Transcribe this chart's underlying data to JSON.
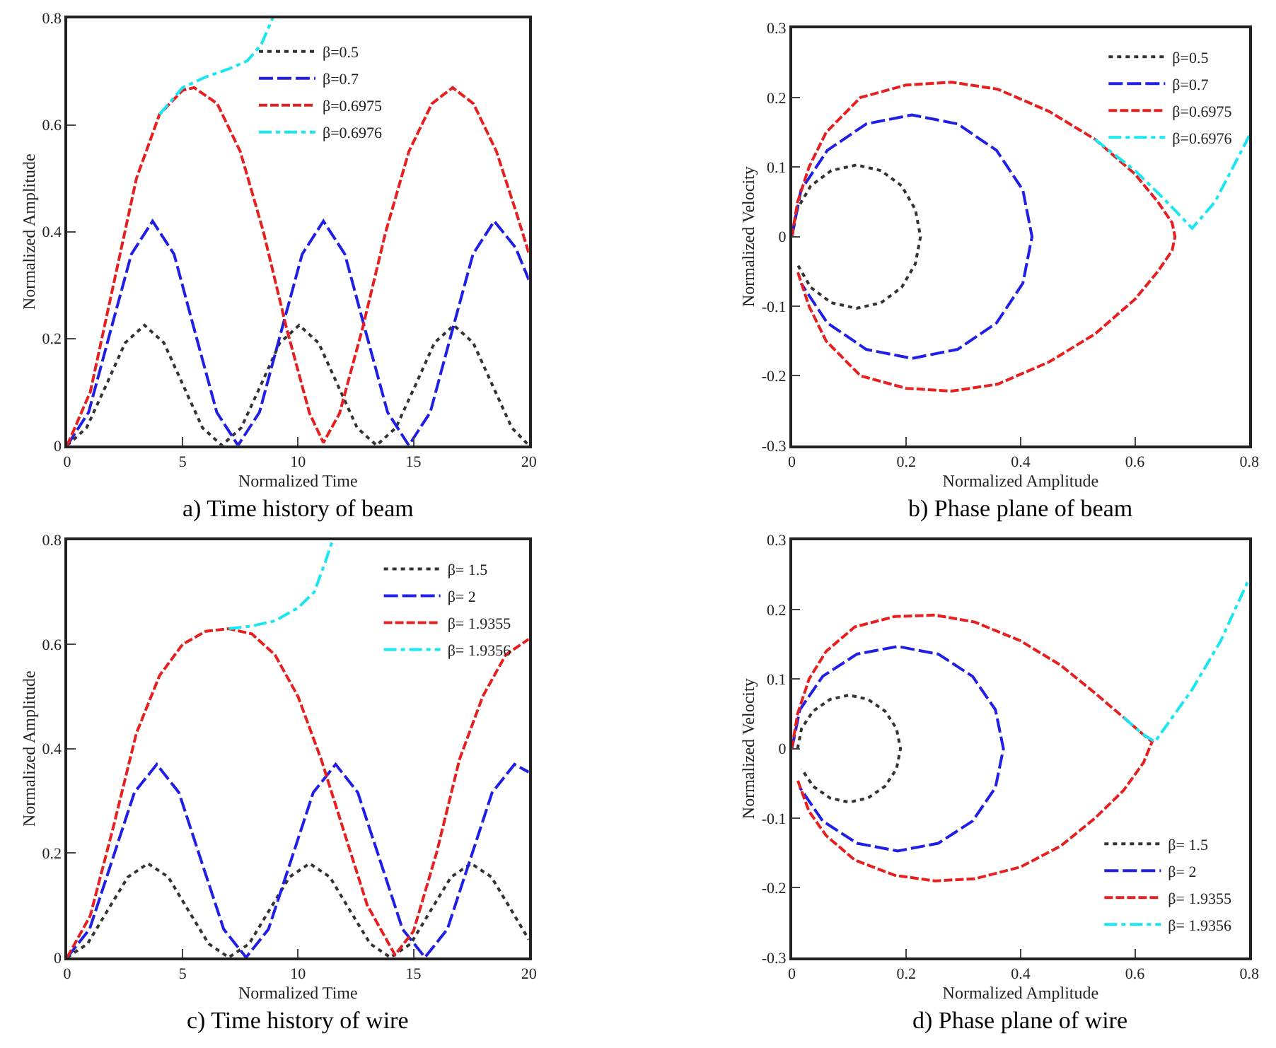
{
  "chart_data": [
    {
      "type": "line",
      "title": "a) Time history of beam",
      "xlabel": "Normalized Time",
      "ylabel": "Normalized Amplitude",
      "xlim": [
        0,
        20
      ],
      "ylim": [
        0,
        0.8
      ],
      "xticks": [
        0,
        5,
        10,
        15,
        20
      ],
      "yticks": [
        0,
        0.2,
        0.4,
        0.6,
        0.8
      ],
      "legend": "top",
      "series": [
        {
          "name": "β=0.5",
          "color": "#333333",
          "line_style": "dotted",
          "x": [
            0,
            0.84,
            1.68,
            2.51,
            3.35,
            4.19,
            5.03,
            5.86,
            6.7,
            7.54,
            8.38,
            9.21,
            10.05,
            10.89,
            11.73,
            12.56,
            13.4,
            14.24,
            15.08,
            15.91,
            16.75,
            17.59,
            18.43,
            19.26,
            20
          ],
          "values": [
            0,
            0.033,
            0.112,
            0.192,
            0.225,
            0.192,
            0.112,
            0.033,
            0,
            0.033,
            0.112,
            0.192,
            0.225,
            0.192,
            0.112,
            0.033,
            0,
            0.033,
            0.112,
            0.192,
            0.225,
            0.192,
            0.112,
            0.033,
            0
          ]
        },
        {
          "name": "β=0.7",
          "color": "#1f1fe6",
          "line_style": "longdash",
          "x": [
            0,
            0.93,
            1.85,
            2.78,
            3.7,
            4.63,
            5.55,
            6.48,
            7.4,
            8.33,
            9.25,
            10.18,
            11.1,
            12.03,
            12.95,
            13.88,
            14.8,
            15.73,
            16.65,
            17.58,
            18.5,
            19.43,
            20
          ],
          "values": [
            0,
            0.062,
            0.21,
            0.358,
            0.42,
            0.358,
            0.21,
            0.062,
            0,
            0.062,
            0.21,
            0.358,
            0.42,
            0.358,
            0.21,
            0.062,
            0,
            0.062,
            0.21,
            0.358,
            0.42,
            0.37,
            0.31
          ]
        },
        {
          "name": "β=0.6975",
          "color": "#e62020",
          "line_style": "dashed",
          "x": [
            0,
            1,
            2,
            3,
            4,
            5,
            5.5,
            6.5,
            7.5,
            8.5,
            9.5,
            10.5,
            11.1,
            11.8,
            12.8,
            13.8,
            14.8,
            15.8,
            16.7,
            17.6,
            18.6,
            19.5,
            20
          ],
          "values": [
            0,
            0.1,
            0.3,
            0.5,
            0.62,
            0.665,
            0.67,
            0.64,
            0.55,
            0.4,
            0.22,
            0.06,
            0.005,
            0.06,
            0.22,
            0.4,
            0.55,
            0.64,
            0.67,
            0.64,
            0.55,
            0.43,
            0.36
          ]
        },
        {
          "name": "β=0.6976",
          "color": "#19e6f0",
          "line_style": "dashdot",
          "x": [
            4,
            5,
            6,
            7,
            7.8,
            8.4,
            8.9
          ],
          "values": [
            0.62,
            0.67,
            0.69,
            0.705,
            0.72,
            0.75,
            0.8
          ]
        }
      ]
    },
    {
      "type": "line",
      "title": "b) Phase plane of beam",
      "xlabel": "Normalized Amplitude",
      "ylabel": "Normalized Velocity",
      "xlim": [
        0,
        0.8
      ],
      "ylim": [
        -0.3,
        0.3
      ],
      "xticks": [
        0,
        0.2,
        0.4,
        0.6,
        0.8
      ],
      "yticks": [
        -0.3,
        -0.2,
        -0.1,
        0,
        0.1,
        0.2,
        0.3
      ],
      "legend": "top right",
      "series": [
        {
          "name": "β=0.5",
          "color": "#333333",
          "line_style": "dotted",
          "x": [
            0,
            0.009,
            0.033,
            0.069,
            0.113,
            0.156,
            0.192,
            0.216,
            0.225,
            0.216,
            0.192,
            0.156,
            0.113,
            0.069,
            0.033,
            0.009
          ],
          "values": [
            0,
            0.039,
            0.073,
            0.095,
            0.103,
            0.095,
            0.073,
            0.039,
            0,
            -0.039,
            -0.073,
            -0.095,
            -0.103,
            -0.095,
            -0.073,
            -0.039
          ]
        },
        {
          "name": "β=0.7",
          "color": "#1f1fe6",
          "line_style": "longdash",
          "x": [
            0,
            0.016,
            0.062,
            0.13,
            0.21,
            0.29,
            0.358,
            0.404,
            0.42,
            0.404,
            0.358,
            0.29,
            0.21,
            0.13,
            0.062,
            0.016
          ],
          "values": [
            0,
            0.067,
            0.124,
            0.162,
            0.175,
            0.162,
            0.124,
            0.067,
            0,
            -0.067,
            -0.124,
            -0.162,
            -0.175,
            -0.162,
            -0.124,
            -0.067
          ]
        },
        {
          "name": "β=0.6975",
          "color": "#e62020",
          "line_style": "dashed",
          "x": [
            0,
            0.01,
            0.03,
            0.06,
            0.12,
            0.2,
            0.28,
            0.36,
            0.45,
            0.53,
            0.6,
            0.64,
            0.665,
            0.67,
            0.665,
            0.64,
            0.6,
            0.53,
            0.45,
            0.36,
            0.28,
            0.2,
            0.12,
            0.06,
            0.03,
            0.01
          ],
          "values": [
            0,
            0.05,
            0.1,
            0.15,
            0.2,
            0.218,
            0.222,
            0.212,
            0.18,
            0.14,
            0.09,
            0.05,
            0.02,
            0,
            -0.02,
            -0.05,
            -0.09,
            -0.14,
            -0.18,
            -0.212,
            -0.222,
            -0.218,
            -0.2,
            -0.15,
            -0.1,
            -0.05
          ]
        },
        {
          "name": "β=0.6976",
          "color": "#19e6f0",
          "line_style": "dashdot",
          "x": [
            0.53,
            0.6,
            0.65,
            0.7,
            0.74,
            0.8
          ],
          "values": [
            0.14,
            0.095,
            0.055,
            0.012,
            0.05,
            0.145
          ]
        }
      ]
    },
    {
      "type": "line",
      "title": "c) Time history of wire",
      "xlabel": "Normalized Time",
      "ylabel": "Normalized Amplitude",
      "xlim": [
        0,
        20
      ],
      "ylim": [
        0,
        0.8
      ],
      "xticks": [
        0,
        5,
        10,
        15,
        20
      ],
      "yticks": [
        0,
        0.2,
        0.4,
        0.6,
        0.8
      ],
      "legend": "top right",
      "series": [
        {
          "name": "β= 1.5",
          "color": "#333333",
          "line_style": "dotted",
          "x": [
            0,
            0.88,
            1.75,
            2.63,
            3.5,
            4.38,
            5.25,
            6.13,
            7,
            7.88,
            8.75,
            9.63,
            10.5,
            11.38,
            12.25,
            13.13,
            14,
            14.88,
            15.75,
            16.63,
            17.5,
            18.38,
            19.25,
            20
          ],
          "values": [
            0,
            0.026,
            0.09,
            0.154,
            0.18,
            0.154,
            0.09,
            0.026,
            0,
            0.026,
            0.09,
            0.154,
            0.18,
            0.154,
            0.09,
            0.026,
            0,
            0.026,
            0.09,
            0.154,
            0.18,
            0.154,
            0.09,
            0.034
          ]
        },
        {
          "name": "β= 2",
          "color": "#1f1fe6",
          "line_style": "longdash",
          "x": [
            0,
            0.97,
            1.94,
            2.91,
            3.88,
            4.84,
            5.81,
            6.78,
            7.75,
            8.72,
            9.69,
            10.66,
            11.63,
            12.59,
            13.56,
            14.53,
            15.5,
            16.47,
            17.44,
            18.41,
            19.38,
            20
          ],
          "values": [
            0,
            0.054,
            0.185,
            0.316,
            0.37,
            0.316,
            0.185,
            0.054,
            0,
            0.054,
            0.185,
            0.316,
            0.37,
            0.316,
            0.185,
            0.054,
            0,
            0.054,
            0.185,
            0.316,
            0.37,
            0.355
          ]
        },
        {
          "name": "β= 1.9355",
          "color": "#e62020",
          "line_style": "dashed",
          "x": [
            0,
            1,
            2,
            3,
            4,
            5,
            6,
            7,
            8,
            9,
            10,
            11,
            12,
            13,
            14.2,
            15,
            16,
            17,
            18,
            19,
            20
          ],
          "values": [
            0,
            0.08,
            0.25,
            0.43,
            0.54,
            0.6,
            0.625,
            0.63,
            0.62,
            0.58,
            0.5,
            0.38,
            0.24,
            0.1,
            0.005,
            0.05,
            0.2,
            0.38,
            0.5,
            0.58,
            0.61
          ]
        },
        {
          "name": "β= 1.9356",
          "color": "#19e6f0",
          "line_style": "dashdot",
          "x": [
            7,
            8,
            9,
            10,
            10.7,
            11.2,
            11.5
          ],
          "values": [
            0.63,
            0.635,
            0.645,
            0.67,
            0.7,
            0.76,
            0.8
          ]
        }
      ]
    },
    {
      "type": "line",
      "title": "d) Phase plane of wire",
      "xlabel": "Normalized Amplitude",
      "ylabel": "Normalized Velocity",
      "xlim": [
        0,
        0.8
      ],
      "ylim": [
        -0.3,
        0.3
      ],
      "xticks": [
        0,
        0.2,
        0.4,
        0.6,
        0.8
      ],
      "yticks": [
        -0.3,
        -0.2,
        -0.1,
        0,
        0.1,
        0.2,
        0.3
      ],
      "legend": "bottom right",
      "series": [
        {
          "name": "β= 1.5",
          "color": "#333333",
          "line_style": "dotted",
          "x": [
            0.01,
            0.017,
            0.037,
            0.067,
            0.1,
            0.133,
            0.163,
            0.183,
            0.19,
            0.183,
            0.163,
            0.133,
            0.1,
            0.067,
            0.037,
            0.017
          ],
          "values": [
            0,
            0.029,
            0.054,
            0.071,
            0.077,
            0.071,
            0.054,
            0.029,
            0,
            -0.029,
            -0.054,
            -0.071,
            -0.077,
            -0.071,
            -0.054,
            -0.029
          ]
        },
        {
          "name": "β= 2",
          "color": "#1f1fe6",
          "line_style": "longdash",
          "x": [
            0,
            0.014,
            0.054,
            0.114,
            0.185,
            0.256,
            0.316,
            0.356,
            0.37,
            0.356,
            0.316,
            0.256,
            0.185,
            0.114,
            0.054,
            0.014
          ],
          "values": [
            0,
            0.056,
            0.104,
            0.136,
            0.147,
            0.136,
            0.104,
            0.056,
            0,
            -0.056,
            -0.104,
            -0.136,
            -0.147,
            -0.136,
            -0.104,
            -0.056
          ]
        },
        {
          "name": "β= 1.9355",
          "color": "#e62020",
          "line_style": "dashed",
          "x": [
            0,
            0.01,
            0.03,
            0.06,
            0.11,
            0.18,
            0.25,
            0.32,
            0.4,
            0.47,
            0.53,
            0.58,
            0.615,
            0.63,
            0.615,
            0.58,
            0.53,
            0.47,
            0.4,
            0.32,
            0.25,
            0.18,
            0.11,
            0.06,
            0.03,
            0.01
          ],
          "values": [
            0,
            0.05,
            0.1,
            0.14,
            0.175,
            0.19,
            0.192,
            0.182,
            0.155,
            0.12,
            0.08,
            0.045,
            0.02,
            0.01,
            -0.02,
            -0.06,
            -0.1,
            -0.14,
            -0.17,
            -0.187,
            -0.19,
            -0.182,
            -0.16,
            -0.125,
            -0.09,
            -0.045
          ]
        },
        {
          "name": "β= 1.9356",
          "color": "#19e6f0",
          "line_style": "dashdot",
          "x": [
            0.58,
            0.615,
            0.635,
            0.7,
            0.75,
            0.8
          ],
          "values": [
            0.045,
            0.02,
            0.01,
            0.085,
            0.155,
            0.245
          ]
        }
      ]
    }
  ]
}
